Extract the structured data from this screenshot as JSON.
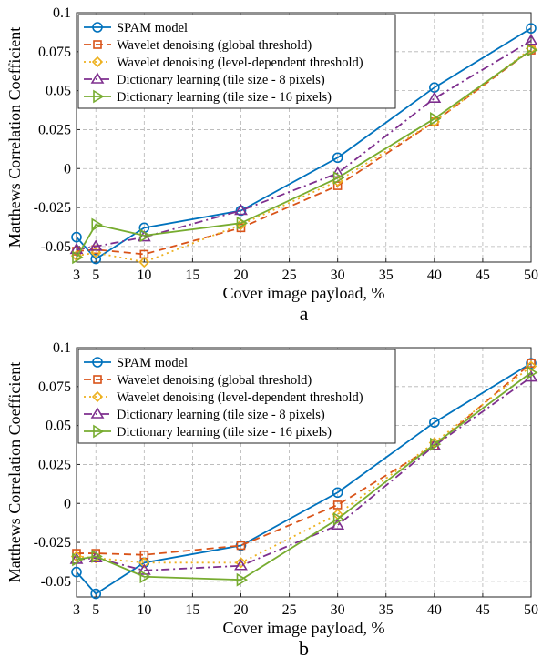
{
  "figure": {
    "panels": [
      {
        "label": "a"
      },
      {
        "label": "b"
      }
    ]
  },
  "chart_data": [
    {
      "type": "line",
      "panel_label": "a",
      "xlabel": "Cover image payload, %",
      "ylabel": "Matthews Correlation Coefficient",
      "xlim": [
        3,
        50
      ],
      "ylim": [
        -0.06,
        0.1
      ],
      "xticks": [
        3,
        5,
        10,
        15,
        20,
        25,
        30,
        35,
        40,
        45,
        50
      ],
      "yticks": [
        -0.05,
        -0.025,
        0,
        0.025,
        0.05,
        0.075,
        0.1
      ],
      "ytick_labels": [
        "-0.05",
        "-0.025",
        "0",
        "0.025",
        "0.05",
        "0.075",
        "0.1"
      ],
      "grid": true,
      "legend_position": "top-left",
      "x": [
        3,
        5,
        10,
        20,
        30,
        40,
        50
      ],
      "series": [
        {
          "name": "SPAM model",
          "color": "#0072BD",
          "marker": "circle",
          "dash": "solid",
          "values": [
            -0.044,
            -0.058,
            -0.038,
            -0.027,
            0.007,
            0.052,
            0.09
          ]
        },
        {
          "name": "Wavelet denoising (global threshold)",
          "color": "#D95319",
          "marker": "square",
          "dash": "dashed",
          "values": [
            -0.053,
            -0.052,
            -0.055,
            -0.038,
            -0.011,
            0.03,
            0.076
          ]
        },
        {
          "name": "Wavelet denoising (level-dependent threshold)",
          "color": "#EDB120",
          "marker": "diamond",
          "dash": "dotted",
          "values": [
            -0.056,
            -0.054,
            -0.06,
            -0.036,
            -0.008,
            0.03,
            0.077
          ]
        },
        {
          "name": "Dictionary learning (tile size - 8 pixels)",
          "color": "#7E2F8E",
          "marker": "triangle-up",
          "dash": "dashdot",
          "values": [
            -0.052,
            -0.05,
            -0.044,
            -0.027,
            -0.003,
            0.045,
            0.082
          ]
        },
        {
          "name": "Dictionary learning (tile size - 16 pixels)",
          "color": "#77AC30",
          "marker": "triangle-right",
          "dash": "solid",
          "values": [
            -0.057,
            -0.036,
            -0.043,
            -0.035,
            -0.006,
            0.032,
            0.076
          ]
        }
      ]
    },
    {
      "type": "line",
      "panel_label": "b",
      "xlabel": "Cover image payload, %",
      "ylabel": "Matthews Correlation Coefficient",
      "xlim": [
        3,
        50
      ],
      "ylim": [
        -0.06,
        0.1
      ],
      "xticks": [
        3,
        5,
        10,
        15,
        20,
        25,
        30,
        35,
        40,
        45,
        50
      ],
      "yticks": [
        -0.05,
        -0.025,
        0,
        0.025,
        0.05,
        0.075,
        0.1
      ],
      "ytick_labels": [
        "-0.05",
        "-0.025",
        "0",
        "0.025",
        "0.05",
        "0.075",
        "0.1"
      ],
      "grid": true,
      "legend_position": "top-left",
      "x": [
        3,
        5,
        10,
        20,
        30,
        40,
        50
      ],
      "series": [
        {
          "name": "SPAM model",
          "color": "#0072BD",
          "marker": "circle",
          "dash": "solid",
          "values": [
            -0.044,
            -0.058,
            -0.038,
            -0.027,
            0.007,
            0.052,
            0.09
          ]
        },
        {
          "name": "Wavelet denoising (global threshold)",
          "color": "#D95319",
          "marker": "square",
          "dash": "dashed",
          "values": [
            -0.032,
            -0.032,
            -0.033,
            -0.027,
            -0.001,
            0.037,
            0.09
          ]
        },
        {
          "name": "Wavelet denoising (level-dependent threshold)",
          "color": "#EDB120",
          "marker": "diamond",
          "dash": "dotted",
          "values": [
            -0.034,
            -0.035,
            -0.038,
            -0.038,
            -0.007,
            0.039,
            0.088
          ]
        },
        {
          "name": "Dictionary learning (tile size - 8 pixels)",
          "color": "#7E2F8E",
          "marker": "triangle-up",
          "dash": "dashdot",
          "values": [
            -0.036,
            -0.035,
            -0.043,
            -0.04,
            -0.014,
            0.037,
            0.081
          ]
        },
        {
          "name": "Dictionary learning (tile size - 16 pixels)",
          "color": "#77AC30",
          "marker": "triangle-right",
          "dash": "solid",
          "values": [
            -0.036,
            -0.034,
            -0.047,
            -0.049,
            -0.01,
            0.038,
            0.084
          ]
        }
      ]
    }
  ]
}
